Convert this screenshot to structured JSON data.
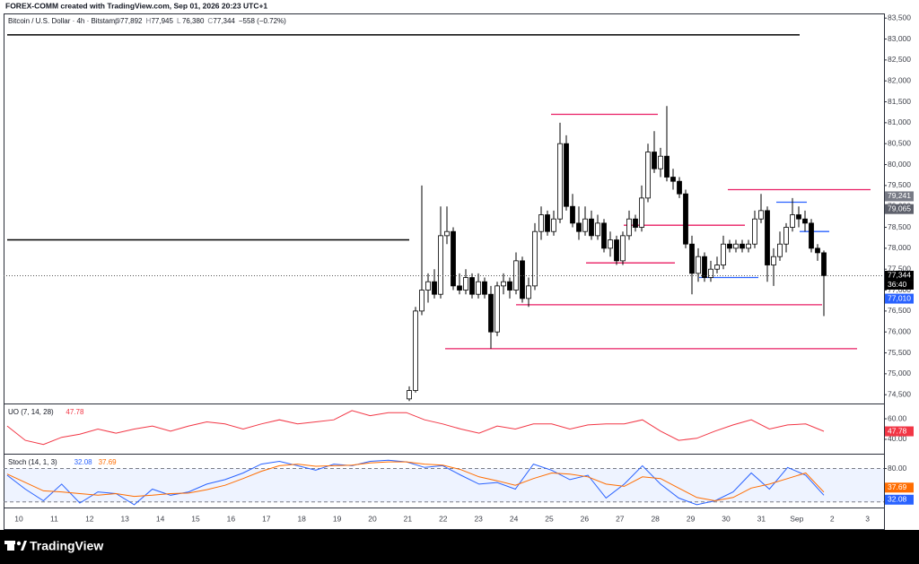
{
  "header": {
    "text": "FOREX-COMM created with TradingView.com, Sep 01, 2026 20:23 UTC+1"
  },
  "footer": {
    "logo": "TradingView"
  },
  "chart_data": [
    {
      "type": "candlestick",
      "title": "Bitcoin / U.S. Dollar · 4h · Bitstamp",
      "legend": [
        {
          "label": "O",
          "value": "77,892"
        },
        {
          "label": "H",
          "value": "77,945"
        },
        {
          "label": "L",
          "value": "76,380"
        },
        {
          "label": "C",
          "value": "77,344"
        }
      ],
      "change": "−558 (−0.72%)",
      "candles": [
        [
          74400,
          74700,
          74350,
          74600
        ],
        [
          74600,
          76600,
          74550,
          76500
        ],
        [
          76500,
          79500,
          76400,
          77000
        ],
        [
          77000,
          77400,
          76700,
          77200
        ],
        [
          77200,
          77500,
          76800,
          76900
        ],
        [
          76900,
          79000,
          76800,
          78300
        ],
        [
          78300,
          79000,
          78100,
          78400
        ],
        [
          78400,
          78500,
          77000,
          77100
        ],
        [
          77100,
          77400,
          76900,
          77000
        ],
        [
          77000,
          77500,
          76900,
          77300
        ],
        [
          77300,
          77400,
          76800,
          76900
        ],
        [
          76900,
          77400,
          76800,
          77200
        ],
        [
          77200,
          77300,
          76800,
          76900
        ],
        [
          76900,
          77100,
          75600,
          76000
        ],
        [
          76000,
          77200,
          75900,
          77100
        ],
        [
          77100,
          77400,
          76900,
          77200
        ],
        [
          77200,
          77300,
          76800,
          77000
        ],
        [
          77000,
          77900,
          76900,
          77700
        ],
        [
          77700,
          77800,
          76700,
          76800
        ],
        [
          76800,
          77300,
          76600,
          77100
        ],
        [
          77100,
          78600,
          77000,
          78400
        ],
        [
          78400,
          79000,
          78200,
          78800
        ],
        [
          78800,
          78900,
          78300,
          78400
        ],
        [
          78400,
          78900,
          78300,
          78700
        ],
        [
          78700,
          81000,
          78600,
          80500
        ],
        [
          80500,
          80700,
          78900,
          79000
        ],
        [
          79000,
          79300,
          78500,
          78600
        ],
        [
          78600,
          79000,
          78200,
          78400
        ],
        [
          78400,
          79000,
          78300,
          78700
        ],
        [
          78700,
          78900,
          78200,
          78300
        ],
        [
          78300,
          78800,
          78200,
          78600
        ],
        [
          78600,
          78700,
          77900,
          78000
        ],
        [
          78000,
          78400,
          77800,
          78200
        ],
        [
          78200,
          78300,
          77600,
          77700
        ],
        [
          77700,
          78400,
          77600,
          78300
        ],
        [
          78300,
          78900,
          78200,
          78700
        ],
        [
          78700,
          78800,
          78400,
          78500
        ],
        [
          78500,
          79500,
          78400,
          79200
        ],
        [
          79200,
          80500,
          79100,
          80300
        ],
        [
          80300,
          80800,
          79800,
          79900
        ],
        [
          79900,
          80400,
          79700,
          80200
        ],
        [
          80200,
          81400,
          79600,
          79700
        ],
        [
          79700,
          79900,
          79400,
          79600
        ],
        [
          79600,
          79700,
          79200,
          79300
        ],
        [
          79300,
          79400,
          78000,
          78100
        ],
        [
          78100,
          78300,
          76900,
          77400
        ],
        [
          77400,
          78000,
          77200,
          77800
        ],
        [
          77800,
          77900,
          77200,
          77300
        ],
        [
          77300,
          77700,
          77200,
          77500
        ],
        [
          77500,
          77800,
          77400,
          77600
        ],
        [
          77600,
          78300,
          77500,
          78100
        ],
        [
          78100,
          78200,
          77900,
          78000
        ],
        [
          78000,
          78200,
          77900,
          78100
        ],
        [
          78100,
          78200,
          77900,
          78000
        ],
        [
          78000,
          78200,
          77900,
          78100
        ],
        [
          78100,
          78900,
          78000,
          78700
        ],
        [
          78700,
          79300,
          78600,
          78900
        ],
        [
          78900,
          79000,
          77200,
          77600
        ],
        [
          77600,
          78000,
          77100,
          77800
        ],
        [
          77800,
          78400,
          77700,
          78100
        ],
        [
          78100,
          78600,
          77900,
          78500
        ],
        [
          78500,
          79200,
          78400,
          78800
        ],
        [
          78800,
          79000,
          78500,
          78700
        ],
        [
          78700,
          78900,
          78400,
          78600
        ],
        [
          78600,
          78700,
          77900,
          78000
        ],
        [
          78000,
          78100,
          77700,
          77892
        ],
        [
          77892,
          77945,
          76380,
          77344
        ]
      ],
      "up_color": "#ffffff",
      "down_color": "#000000",
      "ylim": [
        74290,
        83590
      ],
      "yticks": [
        {
          "value": 74500,
          "label": "74,500"
        },
        {
          "value": 75000,
          "label": "75,000"
        },
        {
          "value": 75500,
          "label": "75,500"
        },
        {
          "value": 76000,
          "label": "76,000"
        },
        {
          "value": 76500,
          "label": "76,500"
        },
        {
          "value": 77000,
          "label": "77,000"
        },
        {
          "value": 77500,
          "label": "77,500"
        },
        {
          "value": 78000,
          "label": "78,000"
        },
        {
          "value": 78500,
          "label": "78,500"
        },
        {
          "value": 79000,
          "label": "79,000"
        },
        {
          "value": 79500,
          "label": "79,500"
        },
        {
          "value": 80000,
          "label": "80,000"
        },
        {
          "value": 80500,
          "label": "80,500"
        },
        {
          "value": 81000,
          "label": "81,000"
        },
        {
          "value": 81500,
          "label": "81,500"
        },
        {
          "value": 82000,
          "label": "82,000"
        },
        {
          "value": 82500,
          "label": "82,500"
        },
        {
          "value": 83000,
          "label": "83,000"
        },
        {
          "value": 83500,
          "label": "83,500"
        }
      ],
      "levels": [
        {
          "value": 83100,
          "color": "#000000"
        },
        {
          "value": 78200,
          "color": "#000000"
        },
        {
          "value": 81200,
          "color": "#e91e63"
        },
        {
          "value": 79400,
          "color": "#e91e63"
        },
        {
          "value": 78550,
          "color": "#e91e63"
        },
        {
          "value": 77650,
          "color": "#e91e63"
        },
        {
          "value": 76650,
          "color": "#e91e63"
        },
        {
          "value": 75600,
          "color": "#e91e63"
        },
        {
          "value": 77300,
          "color": "#2962ff"
        },
        {
          "value": 78400,
          "color": "#2962ff"
        },
        {
          "value": 79100,
          "color": "#2962ff"
        }
      ],
      "price_tags": [
        {
          "value": 79241,
          "label": "79,241",
          "color": "#787b86"
        },
        {
          "value": 79065,
          "label": "79,065",
          "color": "#5d606b"
        },
        {
          "value": 77344,
          "label": "77,344",
          "color": "#000000"
        },
        {
          "value": 77010,
          "label": "77,010",
          "color": "#2962ff"
        }
      ],
      "countdown": "36:40",
      "xticks": [
        "10",
        "11",
        "12",
        "13",
        "14",
        "15",
        "16",
        "17",
        "18",
        "19",
        "20",
        "21",
        "22",
        "23",
        "24",
        "25",
        "26",
        "27",
        "28",
        "29",
        "30",
        "31",
        "Sep",
        "2",
        "3"
      ]
    },
    {
      "type": "line",
      "title": "UO (7, 14, 28)",
      "ylim": [
        26,
        74
      ],
      "yticks": [
        {
          "value": 60,
          "label": "60.00"
        },
        {
          "value": 40,
          "label": "40.00"
        }
      ],
      "series": [
        {
          "name": "UO",
          "color": "#f23645",
          "values": [
            53,
            39,
            35,
            42,
            45,
            50,
            46,
            50,
            53,
            48,
            53,
            57,
            55,
            50,
            55,
            59,
            55,
            57,
            59,
            68,
            63,
            66,
            66,
            59,
            55,
            50,
            46,
            53,
            50,
            55,
            55,
            50,
            54,
            55,
            55,
            59,
            48,
            39,
            41,
            48,
            54,
            59,
            50,
            54,
            55,
            47.78
          ]
        }
      ]
    },
    {
      "type": "line",
      "title": "Stoch (14, 1, 3)",
      "ylim": [
        10,
        105
      ],
      "yticks": [
        {
          "value": 80,
          "label": "80.00"
        }
      ],
      "band": [
        20,
        80
      ],
      "series": [
        {
          "name": "%K",
          "color": "#2962ff",
          "values": [
            68,
            43,
            22,
            52,
            18,
            38,
            35,
            15,
            43,
            32,
            38,
            52,
            60,
            72,
            88,
            93,
            85,
            77,
            88,
            85,
            93,
            95,
            92,
            82,
            85,
            68,
            52,
            55,
            43,
            88,
            77,
            60,
            68,
            27,
            52,
            85,
            52,
            27,
            15,
            22,
            38,
            72,
            43,
            82,
            68,
            32.08
          ]
        },
        {
          "name": "%D",
          "color": "#ff6d00",
          "values": [
            70,
            55,
            40,
            38,
            35,
            32,
            35,
            30,
            32,
            35,
            36,
            42,
            50,
            62,
            75,
            85,
            88,
            84,
            85,
            86,
            90,
            92,
            92,
            88,
            86,
            78,
            65,
            58,
            50,
            62,
            72,
            70,
            65,
            52,
            48,
            65,
            62,
            45,
            28,
            22,
            28,
            45,
            52,
            62,
            72,
            37.69
          ]
        }
      ]
    }
  ]
}
